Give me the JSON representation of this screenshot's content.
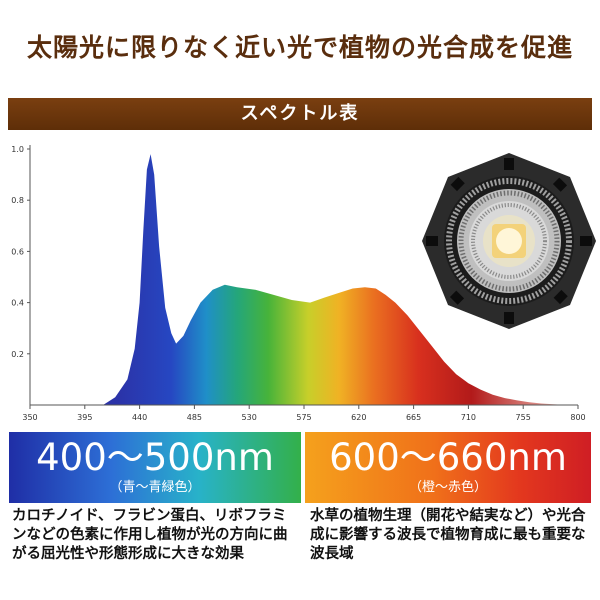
{
  "headline": "太陽光に限りなく近い光で植物の光合成を促進",
  "section_title": "スペクトル表",
  "chart_data": {
    "type": "area",
    "title": "スペクトル表",
    "xlabel": "",
    "ylabel": "",
    "xlim": [
      350,
      800
    ],
    "ylim": [
      0,
      1.0
    ],
    "x_ticks": [
      "350",
      "395",
      "440",
      "485",
      "530",
      "575",
      "620",
      "665",
      "710",
      "755",
      "800"
    ],
    "y_ticks": [
      "0.2",
      "0.4",
      "0.6",
      "0.8",
      "1.0"
    ],
    "grid": false,
    "series": [
      {
        "x": [
          410,
          420,
          430,
          436,
          440,
          443,
          446,
          449,
          452,
          456,
          461,
          466,
          470,
          476,
          482,
          490,
          500,
          510,
          520,
          535,
          550,
          565,
          580,
          592,
          605,
          615,
          625,
          634,
          642,
          650,
          660,
          670,
          680,
          690,
          700,
          710,
          720,
          730,
          740,
          750,
          760,
          770,
          780,
          790
        ],
        "y": [
          0.0,
          0.03,
          0.1,
          0.22,
          0.4,
          0.68,
          0.92,
          0.98,
          0.9,
          0.62,
          0.38,
          0.28,
          0.24,
          0.27,
          0.33,
          0.4,
          0.45,
          0.47,
          0.46,
          0.45,
          0.43,
          0.41,
          0.4,
          0.42,
          0.44,
          0.455,
          0.46,
          0.455,
          0.43,
          0.4,
          0.35,
          0.29,
          0.23,
          0.17,
          0.12,
          0.085,
          0.06,
          0.04,
          0.027,
          0.018,
          0.011,
          0.006,
          0.003,
          0.0
        ]
      }
    ]
  },
  "bands": [
    {
      "range": "400～500nm",
      "sub": "（青～青緑色）",
      "color": "#2d6fd6"
    },
    {
      "range": "600～660nm",
      "sub": "（橙～赤色）",
      "color": "#e3381e"
    }
  ],
  "descriptions": {
    "left": "カロチノイド、フラビン蛋白、リボフラミンなどの色素に作用し植物が光の方向に曲がる屈光性や形態形成に大きな効果",
    "right": "水草の植物生理（開花や結実など）や光合成に影響する波長で植物育成に最も重要な波長域"
  }
}
